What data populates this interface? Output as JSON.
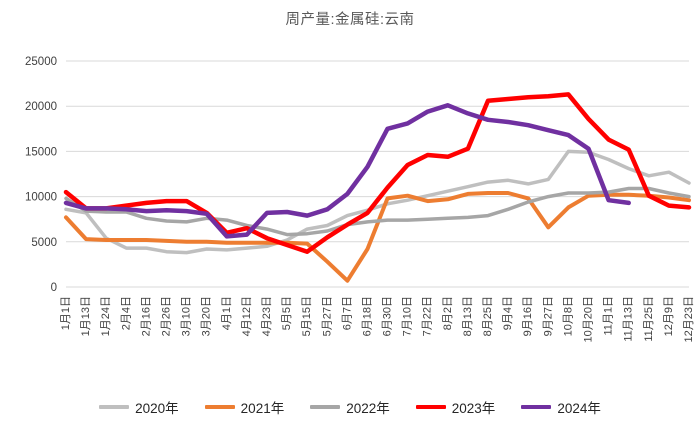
{
  "title": "周产量:金属硅:云南",
  "colors": {
    "grid": "#d9d9d9",
    "tick_text": "#404040",
    "title_text": "#595959",
    "background": "#ffffff"
  },
  "chart_data": {
    "type": "line",
    "title": "周产量:金属硅:云南",
    "xlabel": "",
    "ylabel": "",
    "ylim": [
      0,
      25000
    ],
    "yticks": [
      0,
      5000,
      10000,
      15000,
      20000,
      25000
    ],
    "grid": "horizontal",
    "legend_position": "bottom",
    "categories": [
      "1月1日",
      "1月13日",
      "1月24日",
      "2月4日",
      "2月16日",
      "2月26日",
      "3月10日",
      "3月20日",
      "4月1日",
      "4月12日",
      "4月23日",
      "5月5日",
      "5月15日",
      "5月27日",
      "6月7日",
      "6月18日",
      "6月30日",
      "7月10日",
      "7月22日",
      "8月2日",
      "8月13日",
      "8月25日",
      "9月4日",
      "9月16日",
      "9月27日",
      "10月8日",
      "10月20日",
      "11月1日",
      "11月13日",
      "11月25日",
      "12月9日",
      "12月23日"
    ],
    "series": [
      {
        "name": "2020年",
        "color": "#bfbfbf",
        "stroke_width": 3.5,
        "values": [
          8600,
          8200,
          5400,
          4300,
          4300,
          3900,
          3800,
          4200,
          4100,
          4300,
          4500,
          5200,
          6400,
          6800,
          7900,
          8500,
          9200,
          9600,
          10100,
          10600,
          11100,
          11600,
          11800,
          11400,
          11900,
          15000,
          14900,
          14100,
          13100,
          12300,
          12700,
          11500
        ]
      },
      {
        "name": "2021年",
        "color": "#ed7d31",
        "stroke_width": 4,
        "values": [
          7700,
          5300,
          5200,
          5200,
          5200,
          5100,
          5000,
          5000,
          4900,
          4900,
          4900,
          4900,
          4800,
          2800,
          700,
          4200,
          9800,
          10100,
          9500,
          9700,
          10300,
          10400,
          10400,
          9800,
          6600,
          8800,
          10100,
          10200,
          10200,
          10100,
          9900,
          9600
        ]
      },
      {
        "name": "2022年",
        "color": "#a6a6a6",
        "stroke_width": 3.5,
        "values": [
          9800,
          8400,
          8300,
          8300,
          7600,
          7300,
          7200,
          7600,
          7400,
          6800,
          6400,
          5800,
          5900,
          6200,
          6900,
          7200,
          7400,
          7400,
          7500,
          7600,
          7700,
          7900,
          8600,
          9400,
          10000,
          10400,
          10400,
          10500,
          10900,
          10900,
          10400,
          10000
        ]
      },
      {
        "name": "2023年",
        "color": "#ff0000",
        "stroke_width": 4.5,
        "values": [
          10500,
          8700,
          8700,
          9000,
          9300,
          9500,
          9500,
          8200,
          6000,
          6500,
          5400,
          4650,
          3900,
          5500,
          6900,
          8200,
          11000,
          13500,
          14600,
          14400,
          15300,
          20600,
          20800,
          21000,
          21100,
          21300,
          18600,
          16300,
          15200,
          10100,
          9000,
          8800
        ]
      },
      {
        "name": "2024年",
        "color": "#7030a0",
        "stroke_width": 4.5,
        "values": [
          9300,
          8700,
          8700,
          8600,
          8400,
          8500,
          8400,
          8100,
          5600,
          5800,
          8200,
          8300,
          7900,
          8600,
          10300,
          13300,
          17500,
          18100,
          19400,
          20100,
          19200,
          18500,
          18250,
          17900,
          17350,
          16800,
          15300,
          9600,
          9300,
          null,
          null,
          null
        ]
      }
    ]
  }
}
